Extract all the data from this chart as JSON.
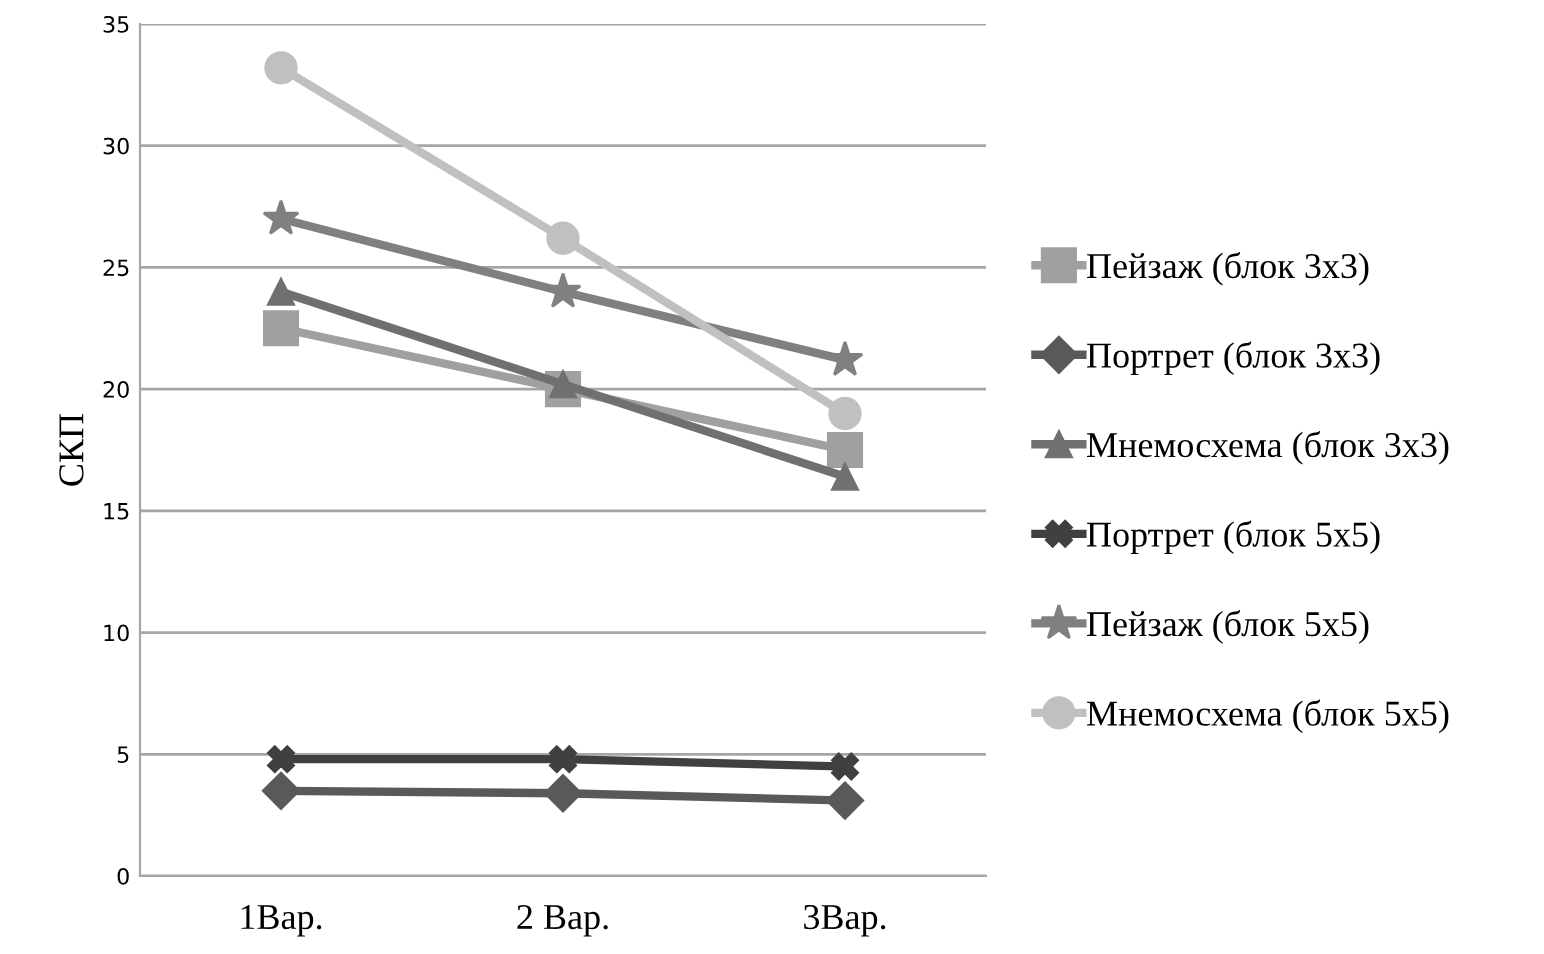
{
  "chart_data": {
    "type": "line",
    "ylabel": "СКП",
    "categories": [
      "1Вар.",
      "2 Вар.",
      "3Вар."
    ],
    "ylim": [
      0,
      35
    ],
    "yticks": [
      0,
      5,
      10,
      15,
      20,
      25,
      30,
      35
    ],
    "grid": "y",
    "legend": "right",
    "series": [
      {
        "name": "Пейзаж (блок 3x3)",
        "color": "#a0a0a0",
        "marker": "square",
        "values": [
          22.5,
          20,
          17.5
        ]
      },
      {
        "name": "Портрет (блок 3x3)",
        "color": "#595959",
        "marker": "diamond",
        "values": [
          3.5,
          3.4,
          3.1
        ]
      },
      {
        "name": "Мнемосхема (блок 3x3)",
        "color": "#707070",
        "marker": "triangle",
        "values": [
          24,
          20.2,
          16.4
        ]
      },
      {
        "name": "Портрет (блок 5x5)",
        "color": "#404040",
        "marker": "cross",
        "values": [
          4.8,
          4.8,
          4.5
        ]
      },
      {
        "name": "Пейзаж (блок 5x5)",
        "color": "#808080",
        "marker": "star",
        "values": [
          27,
          24,
          21.2
        ]
      },
      {
        "name": "Мнемосхема (блок 5x5)",
        "color": "#c0c0c0",
        "marker": "circle",
        "values": [
          33.2,
          26.2,
          19
        ]
      }
    ]
  }
}
